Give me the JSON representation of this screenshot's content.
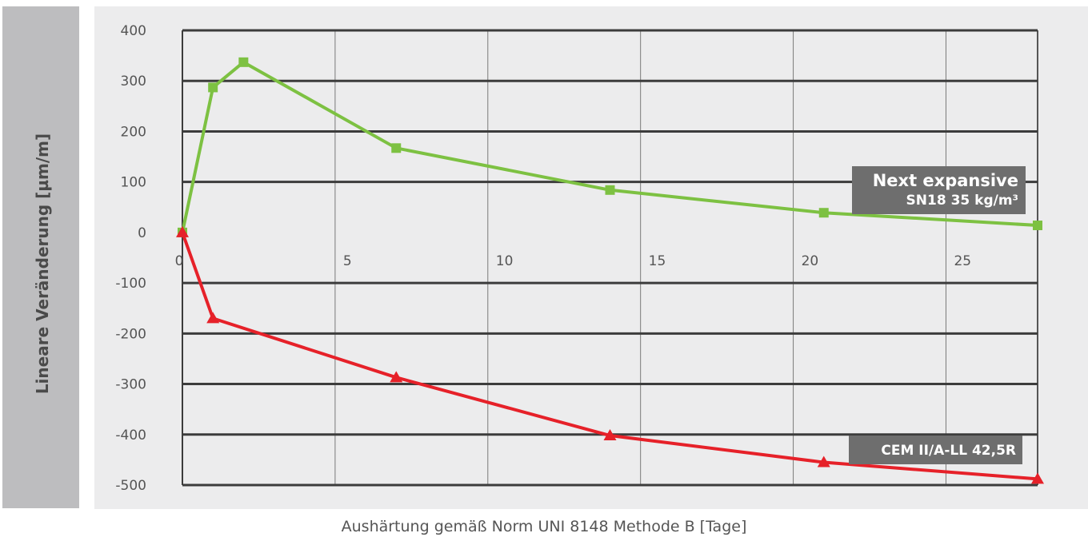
{
  "chart_data": {
    "type": "line",
    "ylabel": "Lineare Veränderung [µm/m]",
    "xlabel": "Aushärtung gemäß Norm UNI 8148 Methode B [Tage]",
    "xlim": [
      0,
      28
    ],
    "ylim": [
      -500,
      400
    ],
    "x_ticks": [
      0,
      5,
      10,
      15,
      20,
      25
    ],
    "y_ticks": [
      400,
      300,
      200,
      100,
      0,
      -100,
      -200,
      -300,
      -400,
      -500
    ],
    "x_tick_labels": [
      "0",
      "5",
      "10",
      "15",
      "20",
      "25"
    ],
    "y_tick_labels": [
      "400",
      "300",
      "200",
      "100",
      "0",
      "-100",
      "-200",
      "-300",
      "-400",
      "-500"
    ],
    "grid": true,
    "series": [
      {
        "name_line1": "Next expansive",
        "name_line2": "SN18 35 kg/m³",
        "color": "#7dc142",
        "marker": "square",
        "x": [
          0,
          1,
          2,
          7,
          14,
          21,
          28
        ],
        "y": [
          0,
          287,
          337,
          167,
          84,
          39,
          14
        ]
      },
      {
        "name": "CEM II/A-LL 42,5R",
        "color": "#e62129",
        "marker": "triangle",
        "x": [
          0,
          1,
          7,
          14,
          21,
          28
        ],
        "y": [
          0,
          -170,
          -287,
          -402,
          -455,
          -488
        ]
      }
    ]
  }
}
